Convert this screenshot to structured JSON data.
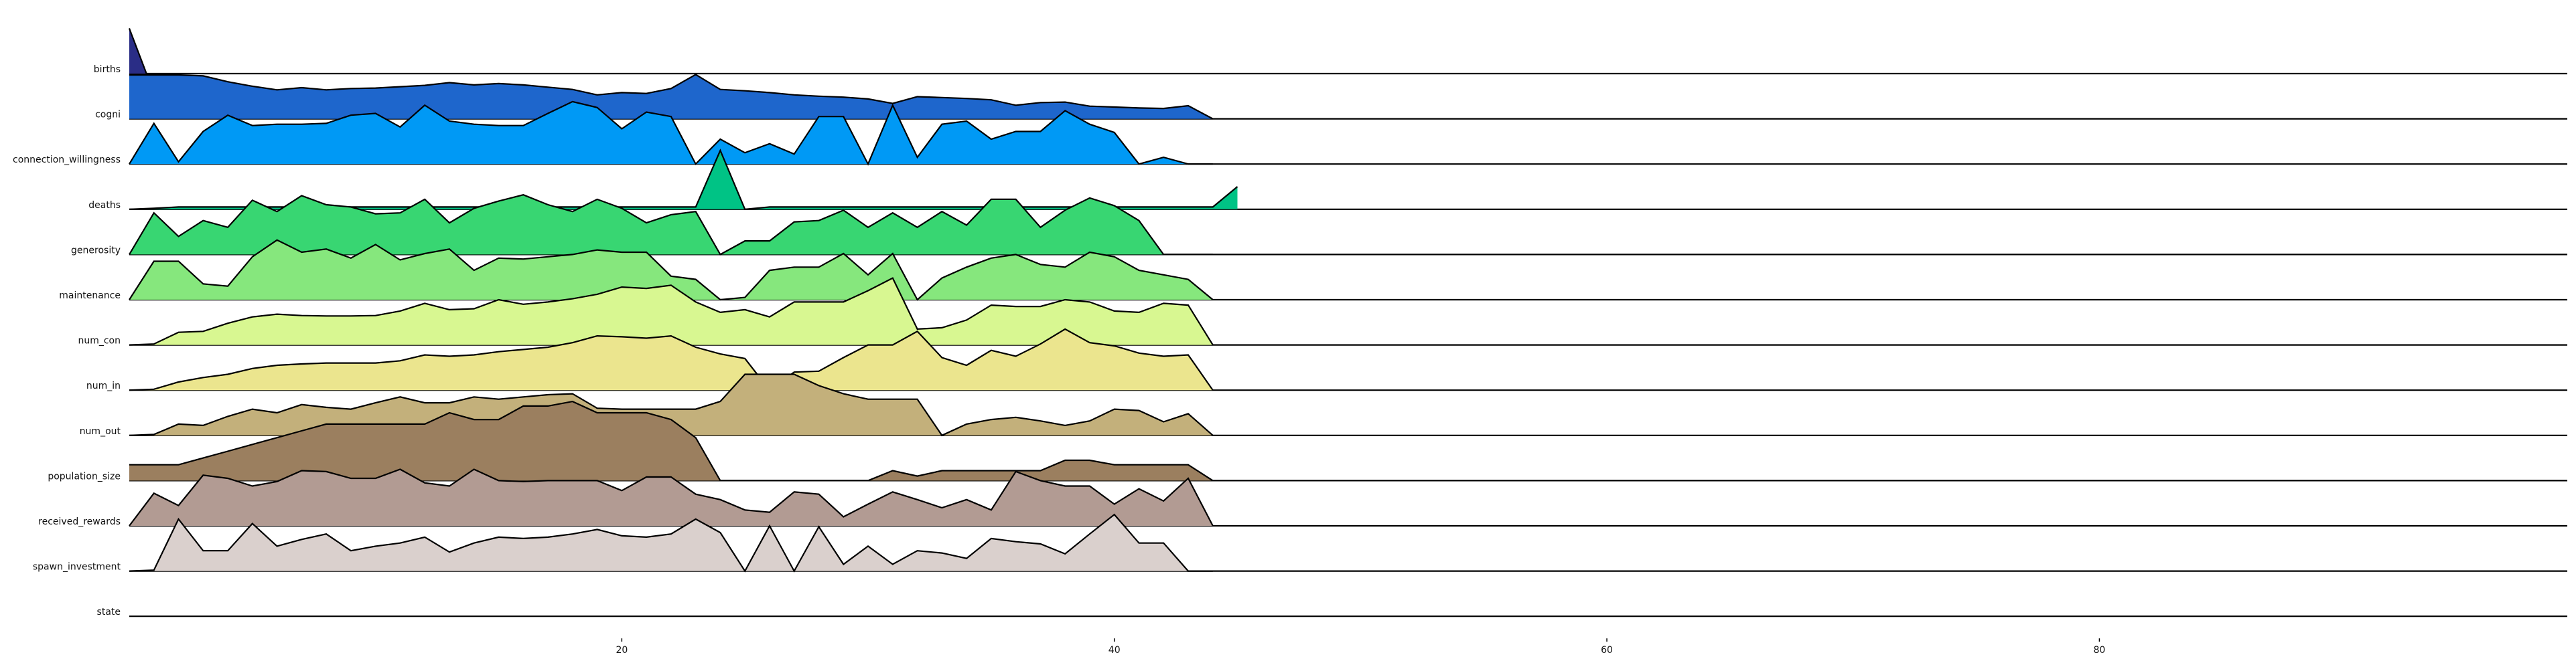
{
  "chart_data": {
    "type": "area",
    "title": "",
    "xlabel": "",
    "ylabel": "",
    "xlim": [
      0,
      99
    ],
    "grid": false,
    "xticks": [
      {
        "value": 20,
        "label": "20"
      },
      {
        "value": 40,
        "label": "40"
      },
      {
        "value": 60,
        "label": "60"
      },
      {
        "value": 80,
        "label": "80"
      }
    ],
    "series": [
      {
        "name": "births",
        "color": "#2a2d86",
        "x": [
          0,
          0.7
        ],
        "values": [
          1.0,
          0.0
        ]
      },
      {
        "name": "cogni",
        "color": "#1e66cc",
        "x": [
          0,
          1,
          2,
          3,
          4,
          5,
          6,
          7,
          8,
          9,
          10,
          11,
          12,
          13,
          14,
          15,
          16,
          17,
          18,
          19,
          20,
          21,
          22,
          23,
          24,
          25,
          26,
          27,
          28,
          29,
          30,
          31,
          32,
          33,
          34,
          35,
          36,
          37,
          38,
          39,
          40,
          41,
          42,
          43,
          44
        ],
        "values": [
          0.97,
          0.97,
          0.97,
          0.95,
          0.82,
          0.72,
          0.64,
          0.69,
          0.64,
          0.67,
          0.68,
          0.71,
          0.74,
          0.8,
          0.75,
          0.78,
          0.75,
          0.7,
          0.65,
          0.53,
          0.58,
          0.56,
          0.67,
          0.98,
          0.65,
          0.62,
          0.58,
          0.53,
          0.5,
          0.48,
          0.44,
          0.34,
          0.49,
          0.47,
          0.45,
          0.42,
          0.3,
          0.36,
          0.37,
          0.28,
          0.26,
          0.24,
          0.23,
          0.29,
          0.0
        ]
      },
      {
        "name": "connection_willingness",
        "color": "#0099f5",
        "x": [
          0,
          1,
          2,
          3,
          4,
          5,
          6,
          7,
          8,
          9,
          10,
          11,
          12,
          13,
          14,
          15,
          16,
          17,
          18,
          19,
          20,
          21,
          22,
          23,
          24,
          25,
          26,
          27,
          28,
          29,
          30,
          31,
          32,
          33,
          34,
          35,
          36,
          37,
          38,
          39,
          40,
          41,
          42,
          43,
          44
        ],
        "values": [
          0.0,
          0.9,
          0.05,
          0.72,
          1.08,
          0.85,
          0.88,
          0.88,
          0.9,
          1.08,
          1.12,
          0.82,
          1.3,
          0.95,
          0.88,
          0.85,
          0.85,
          1.12,
          1.38,
          1.25,
          0.78,
          1.15,
          1.05,
          0.0,
          0.55,
          0.25,
          0.45,
          0.22,
          1.05,
          1.05,
          0.0,
          1.3,
          0.15,
          0.88,
          0.95,
          0.55,
          0.72,
          0.72,
          1.18,
          0.88,
          0.7,
          0.0,
          0.15,
          0.0,
          0.0
        ]
      },
      {
        "name": "deaths",
        "color": "#00c385",
        "x": [
          0,
          1,
          2,
          3,
          4,
          5,
          6,
          7,
          8,
          9,
          10,
          11,
          12,
          13,
          14,
          15,
          16,
          17,
          18,
          19,
          20,
          21,
          22,
          23,
          24,
          25,
          26,
          27,
          28,
          29,
          30,
          31,
          32,
          33,
          34,
          35,
          36,
          37,
          38,
          39,
          40,
          41,
          42,
          43,
          44,
          45
        ],
        "values": [
          0.0,
          0.02,
          0.05,
          0.05,
          0.05,
          0.05,
          0.05,
          0.05,
          0.05,
          0.05,
          0.05,
          0.05,
          0.05,
          0.05,
          0.05,
          0.05,
          0.05,
          0.05,
          0.05,
          0.05,
          0.05,
          0.05,
          0.05,
          0.05,
          1.3,
          0.0,
          0.05,
          0.05,
          0.05,
          0.05,
          0.05,
          0.05,
          0.05,
          0.05,
          0.05,
          0.05,
          0.05,
          0.05,
          0.05,
          0.05,
          0.05,
          0.05,
          0.05,
          0.05,
          0.05,
          0.5
        ]
      },
      {
        "name": "generosity",
        "color": "#38d672",
        "x": [
          0,
          1,
          2,
          3,
          4,
          5,
          6,
          7,
          8,
          9,
          10,
          11,
          12,
          13,
          14,
          15,
          16,
          17,
          18,
          19,
          20,
          21,
          22,
          23,
          24,
          25,
          26,
          27,
          28,
          29,
          30,
          31,
          32,
          33,
          34,
          35,
          36,
          37,
          38,
          39,
          40,
          41,
          42,
          43,
          44
        ],
        "values": [
          0.0,
          0.92,
          0.4,
          0.75,
          0.6,
          1.2,
          0.95,
          1.3,
          1.1,
          1.05,
          0.9,
          0.92,
          1.22,
          0.7,
          1.02,
          1.18,
          1.32,
          1.1,
          0.95,
          1.22,
          1.02,
          0.7,
          0.88,
          0.95,
          0.0,
          0.3,
          0.3,
          0.72,
          0.75,
          0.98,
          0.6,
          0.92,
          0.6,
          0.95,
          0.65,
          1.22,
          1.22,
          0.6,
          0.98,
          1.25,
          1.08,
          0.75,
          0.0,
          0.0,
          0.0
        ]
      },
      {
        "name": "maintenance",
        "color": "#86e77d",
        "x": [
          0,
          1,
          2,
          3,
          4,
          5,
          6,
          7,
          8,
          9,
          10,
          11,
          12,
          13,
          14,
          15,
          16,
          17,
          18,
          19,
          20,
          21,
          22,
          23,
          24,
          25,
          26,
          27,
          28,
          29,
          30,
          31,
          32,
          33,
          34,
          35,
          36,
          37,
          38,
          39,
          40,
          41,
          42,
          43,
          44
        ],
        "values": [
          0.0,
          0.85,
          0.85,
          0.35,
          0.3,
          0.95,
          1.32,
          1.05,
          1.12,
          0.92,
          1.22,
          0.88,
          1.02,
          1.12,
          0.65,
          0.92,
          0.9,
          0.95,
          1.0,
          1.1,
          1.05,
          1.05,
          0.52,
          0.45,
          0.0,
          0.05,
          0.65,
          0.72,
          0.72,
          1.02,
          0.55,
          1.02,
          0.0,
          0.48,
          0.72,
          0.92,
          1.0,
          0.78,
          0.72,
          1.05,
          0.95,
          0.65,
          0.55,
          0.45,
          0.0
        ]
      },
      {
        "name": "num_con",
        "color": "#d8f791",
        "x": [
          0,
          1,
          2,
          3,
          4,
          5,
          6,
          7,
          8,
          9,
          10,
          11,
          12,
          13,
          14,
          15,
          16,
          17,
          18,
          19,
          20,
          21,
          22,
          23,
          24,
          25,
          26,
          27,
          28,
          29,
          30,
          31,
          32,
          33,
          34,
          35,
          36,
          37,
          38,
          39,
          40,
          41,
          42,
          43,
          44
        ],
        "values": [
          0.0,
          0.02,
          0.28,
          0.3,
          0.48,
          0.62,
          0.68,
          0.65,
          0.64,
          0.64,
          0.65,
          0.75,
          0.92,
          0.78,
          0.8,
          1.0,
          0.9,
          0.95,
          1.02,
          1.12,
          1.28,
          1.25,
          1.32,
          0.95,
          0.72,
          0.78,
          0.62,
          0.95,
          0.95,
          0.95,
          1.2,
          1.48,
          0.35,
          0.38,
          0.55,
          0.88,
          0.85,
          0.85,
          1.0,
          0.95,
          0.75,
          0.72,
          0.92,
          0.88,
          0.0
        ]
      },
      {
        "name": "num_in",
        "color": "#ebe58e",
        "x": [
          0,
          1,
          2,
          3,
          4,
          5,
          6,
          7,
          8,
          9,
          10,
          11,
          12,
          13,
          14,
          15,
          16,
          17,
          18,
          19,
          20,
          21,
          22,
          23,
          24,
          25,
          26,
          27,
          28,
          29,
          30,
          31,
          32,
          33,
          34,
          35,
          36,
          37,
          38,
          39,
          40,
          41,
          42,
          43,
          44
        ],
        "values": [
          0.0,
          0.02,
          0.18,
          0.28,
          0.35,
          0.48,
          0.55,
          0.58,
          0.6,
          0.6,
          0.6,
          0.65,
          0.78,
          0.75,
          0.78,
          0.85,
          0.9,
          0.95,
          1.05,
          1.2,
          1.18,
          1.15,
          1.2,
          0.95,
          0.8,
          0.7,
          0.0,
          0.4,
          0.42,
          0.72,
          1.0,
          1.0,
          1.3,
          0.72,
          0.55,
          0.88,
          0.75,
          1.02,
          1.35,
          1.05,
          0.98,
          0.82,
          0.75,
          0.78,
          0.0
        ]
      },
      {
        "name": "num_out",
        "color": "#c3b07b",
        "x": [
          0,
          1,
          2,
          3,
          4,
          5,
          6,
          7,
          8,
          9,
          10,
          11,
          12,
          13,
          14,
          15,
          16,
          17,
          18,
          19,
          20,
          21,
          22,
          23,
          24,
          25,
          26,
          27,
          28,
          29,
          30,
          31,
          32,
          33,
          34,
          35,
          36,
          37,
          38,
          39,
          40,
          41,
          42,
          43,
          44
        ],
        "values": [
          0.0,
          0.02,
          0.25,
          0.22,
          0.42,
          0.58,
          0.5,
          0.68,
          0.62,
          0.58,
          0.72,
          0.85,
          0.72,
          0.72,
          0.85,
          0.8,
          0.85,
          0.9,
          0.92,
          0.6,
          0.58,
          0.58,
          0.58,
          0.58,
          0.75,
          1.35,
          1.35,
          1.35,
          1.1,
          0.92,
          0.8,
          0.8,
          0.8,
          0.0,
          0.25,
          0.35,
          0.4,
          0.32,
          0.22,
          0.32,
          0.58,
          0.55,
          0.3,
          0.48,
          0.0
        ]
      },
      {
        "name": "population_size",
        "color": "#9b7f5f",
        "x": [
          0,
          1,
          2,
          3,
          4,
          5,
          6,
          7,
          8,
          9,
          10,
          11,
          12,
          13,
          14,
          15,
          16,
          17,
          18,
          19,
          20,
          21,
          22,
          23,
          24,
          25,
          26,
          27,
          28,
          29,
          30,
          31,
          32,
          33,
          34,
          35,
          36,
          37,
          38,
          39,
          40,
          41,
          42,
          43,
          44
        ],
        "values": [
          0.35,
          0.35,
          0.35,
          0.5,
          0.65,
          0.8,
          0.95,
          1.1,
          1.25,
          1.25,
          1.25,
          1.25,
          1.25,
          1.5,
          1.35,
          1.35,
          1.65,
          1.65,
          1.75,
          1.5,
          1.5,
          1.5,
          1.35,
          0.95,
          0.0,
          0.0,
          0.0,
          0.0,
          0.0,
          0.0,
          0.0,
          0.22,
          0.1,
          0.22,
          0.22,
          0.22,
          0.22,
          0.22,
          0.45,
          0.45,
          0.35,
          0.35,
          0.35,
          0.35,
          0.0
        ]
      },
      {
        "name": "received_rewards",
        "color": "#b29b93",
        "x": [
          0,
          1,
          2,
          3,
          4,
          5,
          6,
          7,
          8,
          9,
          10,
          11,
          12,
          13,
          14,
          15,
          16,
          17,
          18,
          19,
          20,
          21,
          22,
          23,
          24,
          25,
          26,
          27,
          28,
          29,
          30,
          31,
          32,
          33,
          34,
          35,
          36,
          37,
          38,
          39,
          40,
          41,
          42,
          43,
          44
        ],
        "values": [
          0.0,
          0.72,
          0.45,
          1.12,
          1.05,
          0.88,
          0.98,
          1.22,
          1.2,
          1.05,
          1.05,
          1.25,
          0.95,
          0.88,
          1.25,
          1.0,
          0.98,
          1.0,
          1.0,
          1.0,
          0.78,
          1.08,
          1.08,
          0.7,
          0.58,
          0.35,
          0.3,
          0.75,
          0.7,
          0.2,
          0.48,
          0.75,
          0.58,
          0.4,
          0.58,
          0.35,
          1.2,
          1.0,
          0.88,
          0.88,
          0.48,
          0.82,
          0.55,
          1.05,
          0.0
        ]
      },
      {
        "name": "spawn_investment",
        "color": "#dad0cd",
        "x": [
          0,
          1,
          2,
          3,
          4,
          5,
          6,
          7,
          8,
          9,
          10,
          11,
          12,
          13,
          14,
          15,
          16,
          17,
          18,
          19,
          20,
          21,
          22,
          23,
          24,
          25,
          26,
          27,
          28,
          29,
          30,
          31,
          32,
          33,
          34,
          35,
          36,
          37,
          38,
          39,
          40,
          41,
          42,
          43,
          44
        ],
        "values": [
          0.0,
          0.02,
          1.15,
          0.45,
          0.45,
          1.05,
          0.55,
          0.7,
          0.82,
          0.45,
          0.55,
          0.62,
          0.75,
          0.42,
          0.62,
          0.75,
          0.72,
          0.75,
          0.82,
          0.92,
          0.78,
          0.75,
          0.82,
          1.15,
          0.85,
          0.0,
          1.0,
          0.0,
          0.98,
          0.15,
          0.55,
          0.15,
          0.45,
          0.4,
          0.28,
          0.72,
          0.65,
          0.6,
          0.38,
          0.82,
          1.25,
          0.62,
          0.62,
          0.0,
          0.0
        ]
      }
    ],
    "rows": [
      "births",
      "cogni",
      "connection_willingness",
      "deaths",
      "generosity",
      "maintenance",
      "num_con",
      "num_in",
      "num_out",
      "population_size",
      "received_rewards",
      "spawn_investment",
      "state"
    ]
  }
}
